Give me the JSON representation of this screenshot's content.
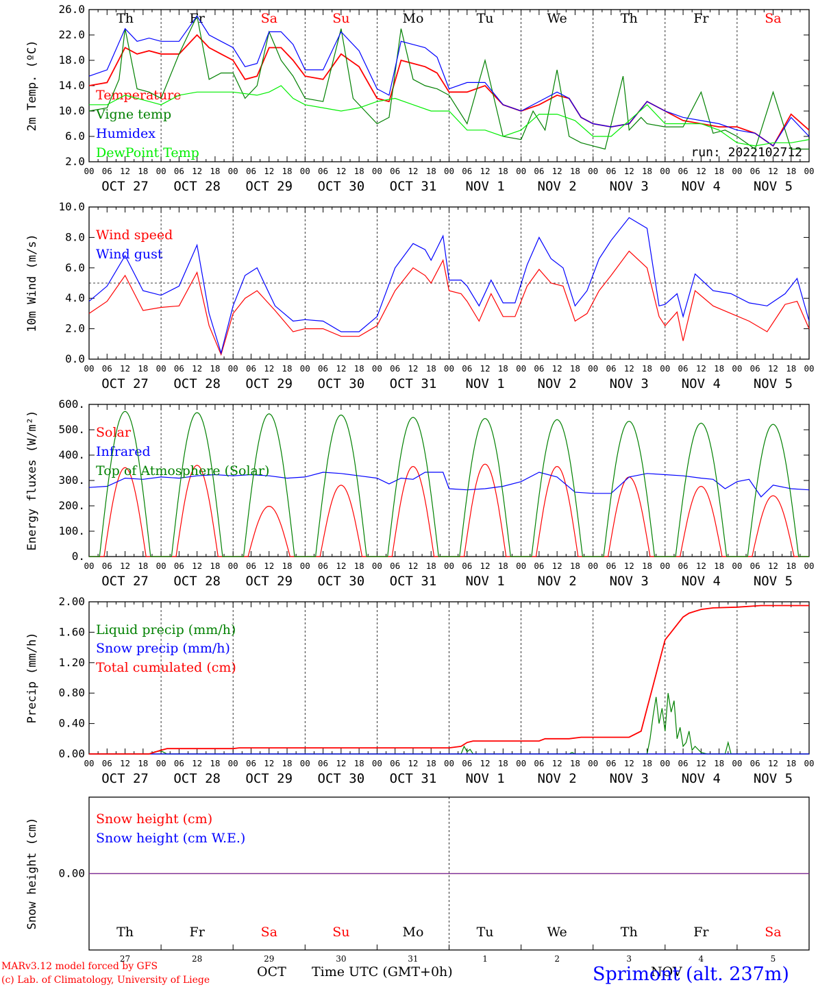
{
  "chart_data": [
    {
      "id": "temp",
      "type": "line",
      "ylabel": "2m Temp. (ºC)",
      "ylim": [
        2,
        26
      ],
      "yticks": [
        "2.0",
        "6.0",
        "10.0",
        "14.0",
        "18.0",
        "22.0",
        "26.0"
      ],
      "x_unit": "hours since OCT 27 00 UTC",
      "xlim": [
        0,
        240
      ],
      "annotation": "run: 2022102712",
      "series": [
        {
          "name": "Temperature",
          "color": "#ff0000",
          "x": [
            0,
            6,
            12,
            16,
            20,
            24,
            30,
            36,
            40,
            44,
            48,
            52,
            56,
            60,
            64,
            68,
            72,
            78,
            84,
            90,
            96,
            100,
            104,
            108,
            112,
            116,
            120,
            126,
            132,
            138,
            144,
            150,
            156,
            160,
            164,
            168,
            174,
            180,
            186,
            192,
            198,
            204,
            210,
            216,
            222,
            228,
            234,
            240
          ],
          "y": [
            14,
            14.5,
            20,
            19,
            19.5,
            19,
            19,
            22,
            20,
            19,
            18,
            15,
            15.5,
            20,
            20,
            18,
            15.5,
            15,
            19,
            17,
            12,
            11.5,
            18,
            17.5,
            17,
            16,
            13,
            13,
            14,
            11,
            10,
            11,
            12.5,
            12,
            9,
            8,
            7.5,
            8,
            11.5,
            10,
            8.5,
            8,
            7.5,
            7.5,
            6.5,
            4.5,
            9.5,
            7
          ]
        },
        {
          "name": "Vigne temp",
          "color": "#008000",
          "x": [
            0,
            6,
            10,
            12,
            16,
            20,
            24,
            30,
            36,
            40,
            44,
            48,
            52,
            56,
            60,
            64,
            68,
            72,
            78,
            84,
            88,
            92,
            96,
            100,
            104,
            108,
            112,
            116,
            120,
            126,
            132,
            138,
            144,
            148,
            152,
            156,
            160,
            164,
            168,
            172,
            178,
            180,
            184,
            186,
            192,
            198,
            204,
            208,
            212,
            216,
            222,
            228,
            234,
            240
          ],
          "y": [
            10,
            10.5,
            15,
            23,
            13.5,
            13,
            12,
            19,
            25,
            15,
            16,
            16,
            12,
            14,
            22.5,
            18,
            15.5,
            12,
            11.5,
            23,
            12,
            10,
            8,
            9,
            23,
            15,
            14,
            13.5,
            12.5,
            8,
            18,
            6,
            5.5,
            10,
            7,
            16.5,
            6,
            5,
            4.5,
            4,
            15.5,
            7,
            9,
            8,
            7.5,
            7.5,
            13,
            6.5,
            7,
            6,
            4,
            13,
            4,
            4
          ]
        },
        {
          "name": "Humidex",
          "color": "#0000ff",
          "x": [
            0,
            6,
            12,
            16,
            20,
            24,
            30,
            36,
            40,
            44,
            48,
            52,
            56,
            60,
            64,
            68,
            72,
            78,
            84,
            90,
            96,
            100,
            104,
            108,
            112,
            116,
            120,
            126,
            132,
            138,
            144,
            150,
            156,
            160,
            164,
            168,
            174,
            180,
            186,
            192,
            198,
            204,
            210,
            216,
            222,
            228,
            234,
            240
          ],
          "y": [
            15.5,
            16.5,
            23,
            21,
            21.5,
            21,
            21,
            25,
            22,
            21,
            20,
            17,
            17.5,
            22.5,
            22.5,
            20.5,
            16.5,
            16.5,
            22.5,
            19.5,
            13.5,
            12.5,
            21,
            20.5,
            20,
            18.5,
            13.5,
            14.5,
            14.5,
            11,
            10,
            11.5,
            13,
            12,
            9,
            8,
            7.5,
            8,
            11.5,
            10,
            9,
            8.5,
            8,
            7,
            6.5,
            4.5,
            9,
            6
          ]
        },
        {
          "name": "DewPoint Temp",
          "color": "#00ee00",
          "x": [
            0,
            6,
            12,
            20,
            24,
            30,
            36,
            48,
            56,
            60,
            64,
            68,
            72,
            78,
            84,
            90,
            96,
            102,
            108,
            114,
            120,
            126,
            132,
            138,
            144,
            150,
            156,
            162,
            168,
            174,
            180,
            186,
            192,
            198,
            204,
            210,
            216,
            222,
            228,
            234,
            240
          ],
          "y": [
            11,
            11,
            12.5,
            11.5,
            11,
            12.5,
            13,
            13,
            12.5,
            13,
            14,
            12,
            11,
            10.5,
            10,
            10.5,
            11.5,
            12,
            11,
            10,
            10,
            7,
            7,
            6,
            7,
            9.5,
            9.5,
            8.5,
            6,
            6,
            8.5,
            11,
            8,
            8,
            8,
            7,
            5,
            4.5,
            5,
            5,
            5.5
          ]
        }
      ]
    },
    {
      "id": "wind",
      "type": "line",
      "ylabel": "10m Wind (m/s)",
      "ylim": [
        0,
        10
      ],
      "yticks": [
        "0.0",
        "2.0",
        "4.0",
        "6.0",
        "8.0",
        "10.0"
      ],
      "xlim": [
        0,
        240
      ],
      "hline": 5,
      "series": [
        {
          "name": "Wind speed",
          "color": "#ff0000",
          "x": [
            0,
            6,
            12,
            18,
            24,
            30,
            36,
            40,
            44,
            48,
            52,
            56,
            62,
            68,
            72,
            78,
            84,
            90,
            96,
            102,
            108,
            112,
            114,
            118,
            120,
            124,
            126,
            130,
            134,
            138,
            142,
            146,
            150,
            154,
            158,
            162,
            166,
            170,
            174,
            180,
            186,
            190,
            192,
            196,
            198,
            202,
            208,
            214,
            220,
            226,
            232,
            236,
            240
          ],
          "y": [
            3,
            3.8,
            5.5,
            3.2,
            3.4,
            3.5,
            5.7,
            2.2,
            0.3,
            3,
            4,
            4.5,
            3.2,
            1.8,
            2,
            2,
            1.5,
            1.5,
            2.2,
            4.5,
            6,
            5.5,
            5,
            6.5,
            4.5,
            4.3,
            3.8,
            2.5,
            4.3,
            2.8,
            2.8,
            4.8,
            5.9,
            5,
            4.8,
            2.5,
            3,
            4.5,
            5.5,
            7.1,
            6,
            2.8,
            2.2,
            3.1,
            1.2,
            4.5,
            3.5,
            3,
            2.5,
            1.8,
            3.6,
            3.8,
            2
          ]
        },
        {
          "name": "Wind gust",
          "color": "#0000ff",
          "x": [
            0,
            6,
            12,
            18,
            24,
            30,
            36,
            40,
            44,
            48,
            52,
            56,
            62,
            68,
            72,
            78,
            84,
            90,
            96,
            102,
            108,
            112,
            114,
            118,
            120,
            124,
            126,
            130,
            134,
            138,
            142,
            146,
            150,
            154,
            158,
            162,
            166,
            170,
            174,
            180,
            186,
            190,
            192,
            196,
            198,
            202,
            208,
            214,
            220,
            226,
            232,
            236,
            240
          ],
          "y": [
            3.8,
            4.8,
            6.8,
            4.5,
            4.2,
            4.8,
            7.5,
            3,
            0.4,
            3.5,
            5.5,
            6,
            3.5,
            2.5,
            2.6,
            2.5,
            1.8,
            1.8,
            2.8,
            6,
            7.6,
            7.2,
            6.5,
            8.1,
            5.2,
            5.2,
            4.8,
            3.5,
            5.2,
            3.7,
            3.7,
            6.2,
            8,
            6.6,
            6,
            3.5,
            4.5,
            6.6,
            7.8,
            9.3,
            8.6,
            3.5,
            3.6,
            4.3,
            2.8,
            5.6,
            4.5,
            4.3,
            3.7,
            3.5,
            4.3,
            5.3,
            2.5
          ]
        }
      ]
    },
    {
      "id": "energy",
      "type": "line",
      "ylabel": "Energy fluxes (W/m²)",
      "ylim": [
        0,
        650
      ],
      "yticks": [
        "0.",
        "100.",
        "200.",
        "300.",
        "400.",
        "500.",
        "600."
      ],
      "xlim": [
        0,
        240
      ],
      "series": [
        {
          "name": "Solar",
          "color": "#ff0000",
          "kind": "diurnal",
          "peaks": [
            380,
            390,
            215,
            305,
            385,
            395,
            385,
            340,
            300,
            260
          ],
          "width": 7
        },
        {
          "name": "Infrared",
          "color": "#0000ff",
          "x": [
            0,
            6,
            12,
            18,
            24,
            30,
            36,
            42,
            48,
            54,
            60,
            66,
            72,
            78,
            84,
            90,
            96,
            100,
            104,
            108,
            112,
            118,
            120,
            126,
            132,
            138,
            144,
            150,
            156,
            162,
            168,
            174,
            180,
            186,
            192,
            198,
            204,
            208,
            212,
            216,
            220,
            224,
            228,
            234,
            240
          ],
          "y": [
            295,
            300,
            335,
            330,
            340,
            335,
            345,
            350,
            345,
            350,
            345,
            335,
            340,
            360,
            355,
            345,
            335,
            310,
            335,
            330,
            360,
            360,
            290,
            285,
            290,
            300,
            320,
            360,
            340,
            275,
            270,
            270,
            340,
            355,
            350,
            345,
            335,
            330,
            290,
            320,
            330,
            255,
            305,
            290,
            285
          ]
        },
        {
          "name": "Top of Atmosphere (Solar)",
          "color": "#008000",
          "kind": "diurnal",
          "peaks": [
            620,
            615,
            610,
            605,
            595,
            590,
            585,
            578,
            570,
            565
          ],
          "width": 8.5
        }
      ]
    },
    {
      "id": "precip",
      "type": "line",
      "ylabel": "Precip (mm/h)",
      "ylim": [
        0,
        2
      ],
      "yticks": [
        "0.00",
        "0.40",
        "0.80",
        "1.20",
        "1.60",
        "2.00"
      ],
      "xlim": [
        0,
        240
      ],
      "series": [
        {
          "name": "Liquid precip (mm/h)",
          "color": "#008000",
          "x": [
            0,
            20,
            22,
            24,
            25,
            26,
            48,
            124,
            125,
            126,
            127,
            128,
            160,
            161,
            162,
            176,
            186,
            187,
            188,
            189,
            190,
            191,
            192,
            193,
            194,
            195,
            196,
            197,
            198,
            199,
            200,
            201,
            202,
            204,
            206,
            210,
            212,
            213,
            214,
            220,
            240
          ],
          "y": [
            0,
            0,
            0.03,
            0.04,
            0.02,
            0,
            0,
            0,
            0.1,
            0.03,
            0.06,
            0,
            0,
            0.02,
            0,
            0,
            0,
            0.2,
            0.5,
            0.75,
            0.4,
            0.6,
            0.3,
            0.8,
            0.55,
            0.7,
            0.2,
            0.35,
            0.1,
            0.15,
            0.3,
            0.05,
            0.1,
            0.02,
            0,
            0,
            0,
            0.15,
            0,
            0,
            0
          ]
        },
        {
          "name": "Snow precip (mm/h)",
          "color": "#0000ff",
          "x": [
            0,
            240
          ],
          "y": [
            0,
            0
          ]
        },
        {
          "name": "Total cumulated (cm)",
          "color": "#ff0000",
          "x": [
            0,
            20,
            24,
            26,
            48,
            50,
            120,
            124,
            126,
            128,
            150,
            152,
            160,
            164,
            180,
            184,
            186,
            188,
            190,
            192,
            194,
            196,
            198,
            200,
            204,
            208,
            216,
            224,
            240
          ],
          "y": [
            0,
            0,
            0.05,
            0.07,
            0.07,
            0.08,
            0.08,
            0.1,
            0.15,
            0.17,
            0.17,
            0.2,
            0.2,
            0.22,
            0.22,
            0.3,
            0.6,
            0.9,
            1.2,
            1.5,
            1.6,
            1.7,
            1.8,
            1.85,
            1.9,
            1.92,
            1.93,
            1.95,
            1.95
          ]
        }
      ]
    },
    {
      "id": "snow",
      "type": "line",
      "ylabel": "Snow height (cm)",
      "ytick": "0.00",
      "xlim": [
        0,
        240
      ],
      "series": [
        {
          "name": "Snow height (cm)",
          "color": "#ff0000",
          "x": [
            0,
            240
          ],
          "y": [
            0,
            0
          ]
        },
        {
          "name": "Snow height (cm W.E.)",
          "color": "#0000ff",
          "x": [
            0,
            240
          ],
          "y": [
            0,
            0
          ]
        }
      ]
    }
  ],
  "days": [
    {
      "dow": "Th",
      "dnum": "27",
      "date": "OCT 27",
      "color": "#000000"
    },
    {
      "dow": "Fr",
      "dnum": "28",
      "date": "OCT 28",
      "color": "#000000"
    },
    {
      "dow": "Sa",
      "dnum": "29",
      "date": "OCT 29",
      "color": "#ff0000"
    },
    {
      "dow": "Su",
      "dnum": "30",
      "date": "OCT 30",
      "color": "#ff0000"
    },
    {
      "dow": "Mo",
      "dnum": "31",
      "date": "OCT 31",
      "color": "#000000"
    },
    {
      "dow": "Tu",
      "dnum": "1",
      "date": "NOV  1",
      "color": "#000000"
    },
    {
      "dow": "We",
      "dnum": "2",
      "date": "NOV  2",
      "color": "#000000"
    },
    {
      "dow": "Th",
      "dnum": "3",
      "date": "NOV  3",
      "color": "#000000"
    },
    {
      "dow": "Fr",
      "dnum": "4",
      "date": "NOV  4",
      "color": "#000000"
    },
    {
      "dow": "Sa",
      "dnum": "5",
      "date": "NOV  5",
      "color": "#ff0000"
    }
  ],
  "hour_labels": [
    "00",
    "06",
    "12",
    "18"
  ],
  "final_hour_label": "00",
  "footer": {
    "credit_line1": "MARv3.12 model forced by GFS",
    "credit_line2": "(c) Lab. of Climatology, University of Liege",
    "month_oct": "OCT",
    "month_nov": "NOV",
    "axis_title": "Time UTC (GMT+0h)",
    "station": "Sprimont (alt. 237m)"
  }
}
